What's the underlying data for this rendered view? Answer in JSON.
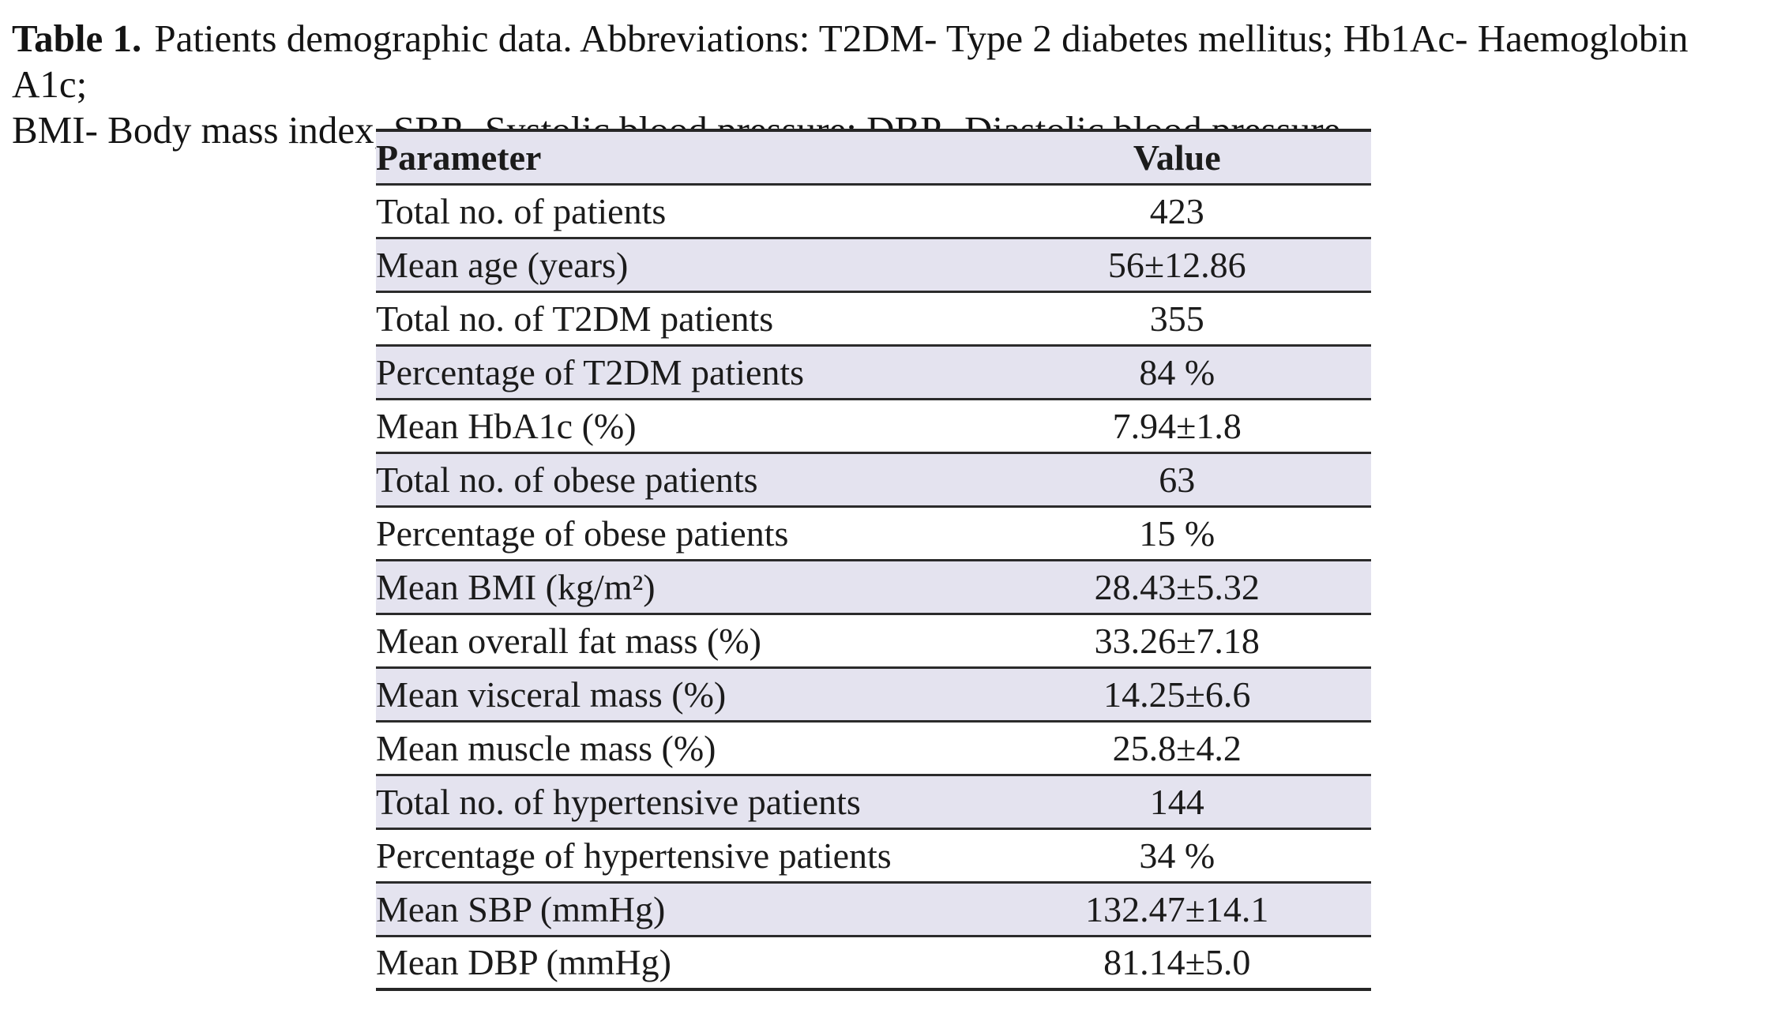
{
  "colors": {
    "row_shade": "#e4e3ef",
    "row_plain": "#ffffff",
    "rule": "#2b2b2b",
    "text": "#1a1a1a"
  },
  "caption": {
    "label": "Table 1.",
    "line1": "Patients demographic data. Abbreviations: T2DM- Type 2 diabetes mellitus; Hb1Ac- Haemoglobin A1c;",
    "line2": "BMI- Body mass index, SBP- Systolic blood pressure; DBP- Diastolic blood pressure."
  },
  "table": {
    "headers": {
      "parameter": "Parameter",
      "value": "Value"
    },
    "rows": [
      {
        "parameter": "Total no. of patients",
        "value": "423"
      },
      {
        "parameter": "Mean age (years)",
        "value": "56±12.86"
      },
      {
        "parameter": "Total no. of T2DM patients",
        "value": "355"
      },
      {
        "parameter": "Percentage of T2DM patients",
        "value": "84 %"
      },
      {
        "parameter": "Mean HbA1c (%)",
        "value": "7.94±1.8"
      },
      {
        "parameter": "Total no. of obese patients",
        "value": "63"
      },
      {
        "parameter": "Percentage of obese patients",
        "value": "15 %"
      },
      {
        "parameter": "Mean BMI (kg/m²)",
        "value": "28.43±5.32"
      },
      {
        "parameter": "Mean overall fat mass (%)",
        "value": "33.26±7.18"
      },
      {
        "parameter": "Mean visceral mass (%)",
        "value": "14.25±6.6"
      },
      {
        "parameter": "Mean muscle mass (%)",
        "value": "25.8±4.2"
      },
      {
        "parameter": "Total no. of hypertensive patients",
        "value": "144"
      },
      {
        "parameter": "Percentage of hypertensive patients",
        "value": "34 %"
      },
      {
        "parameter": "Mean SBP (mmHg)",
        "value": "132.47±14.1"
      },
      {
        "parameter": "Mean DBP (mmHg)",
        "value": "81.14±5.0"
      }
    ]
  }
}
